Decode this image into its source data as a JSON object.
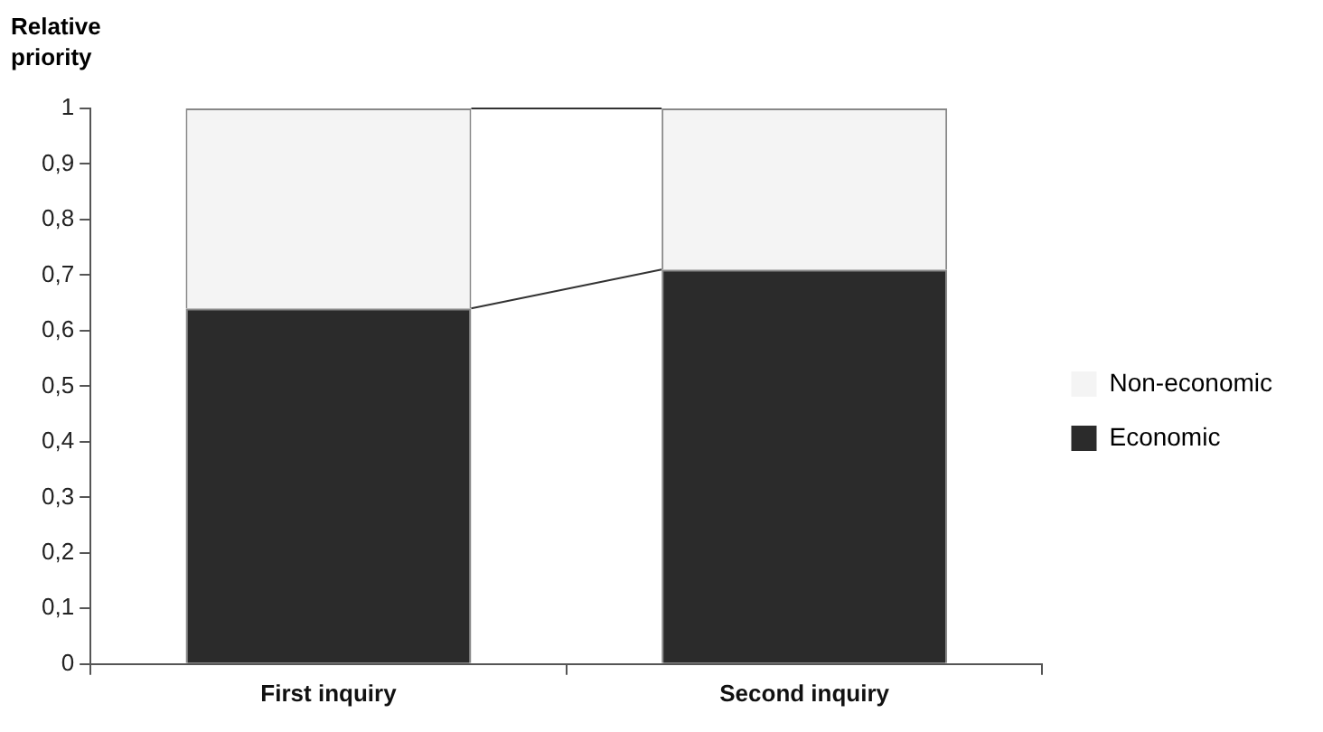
{
  "chart_data": {
    "type": "bar",
    "ylabel": "Relative priority",
    "categories": [
      "First inquiry",
      "Second inquiry"
    ],
    "series": [
      {
        "name": "Economic",
        "color": "#2b2b2b",
        "values": [
          0.64,
          0.71
        ]
      },
      {
        "name": "Non-economic",
        "color": "#f4f4f4",
        "values": [
          0.36,
          0.29
        ]
      }
    ],
    "stacked": true,
    "ylim": [
      0,
      1
    ],
    "yticks": [
      0,
      {
        "value": 0.1,
        "label": "0,1"
      },
      {
        "value": 0.2,
        "label": "0,2"
      },
      {
        "value": 0.3,
        "label": "0,3"
      },
      {
        "value": 0.4,
        "label": "0,4"
      },
      {
        "value": 0.5,
        "label": "0,5"
      },
      {
        "value": 0.6,
        "label": "0,6"
      },
      {
        "value": 0.7,
        "label": "0,7"
      },
      {
        "value": 0.8,
        "label": "0,8"
      },
      {
        "value": 0.9,
        "label": "0,9"
      },
      1
    ],
    "grid": false,
    "legend": "right"
  }
}
